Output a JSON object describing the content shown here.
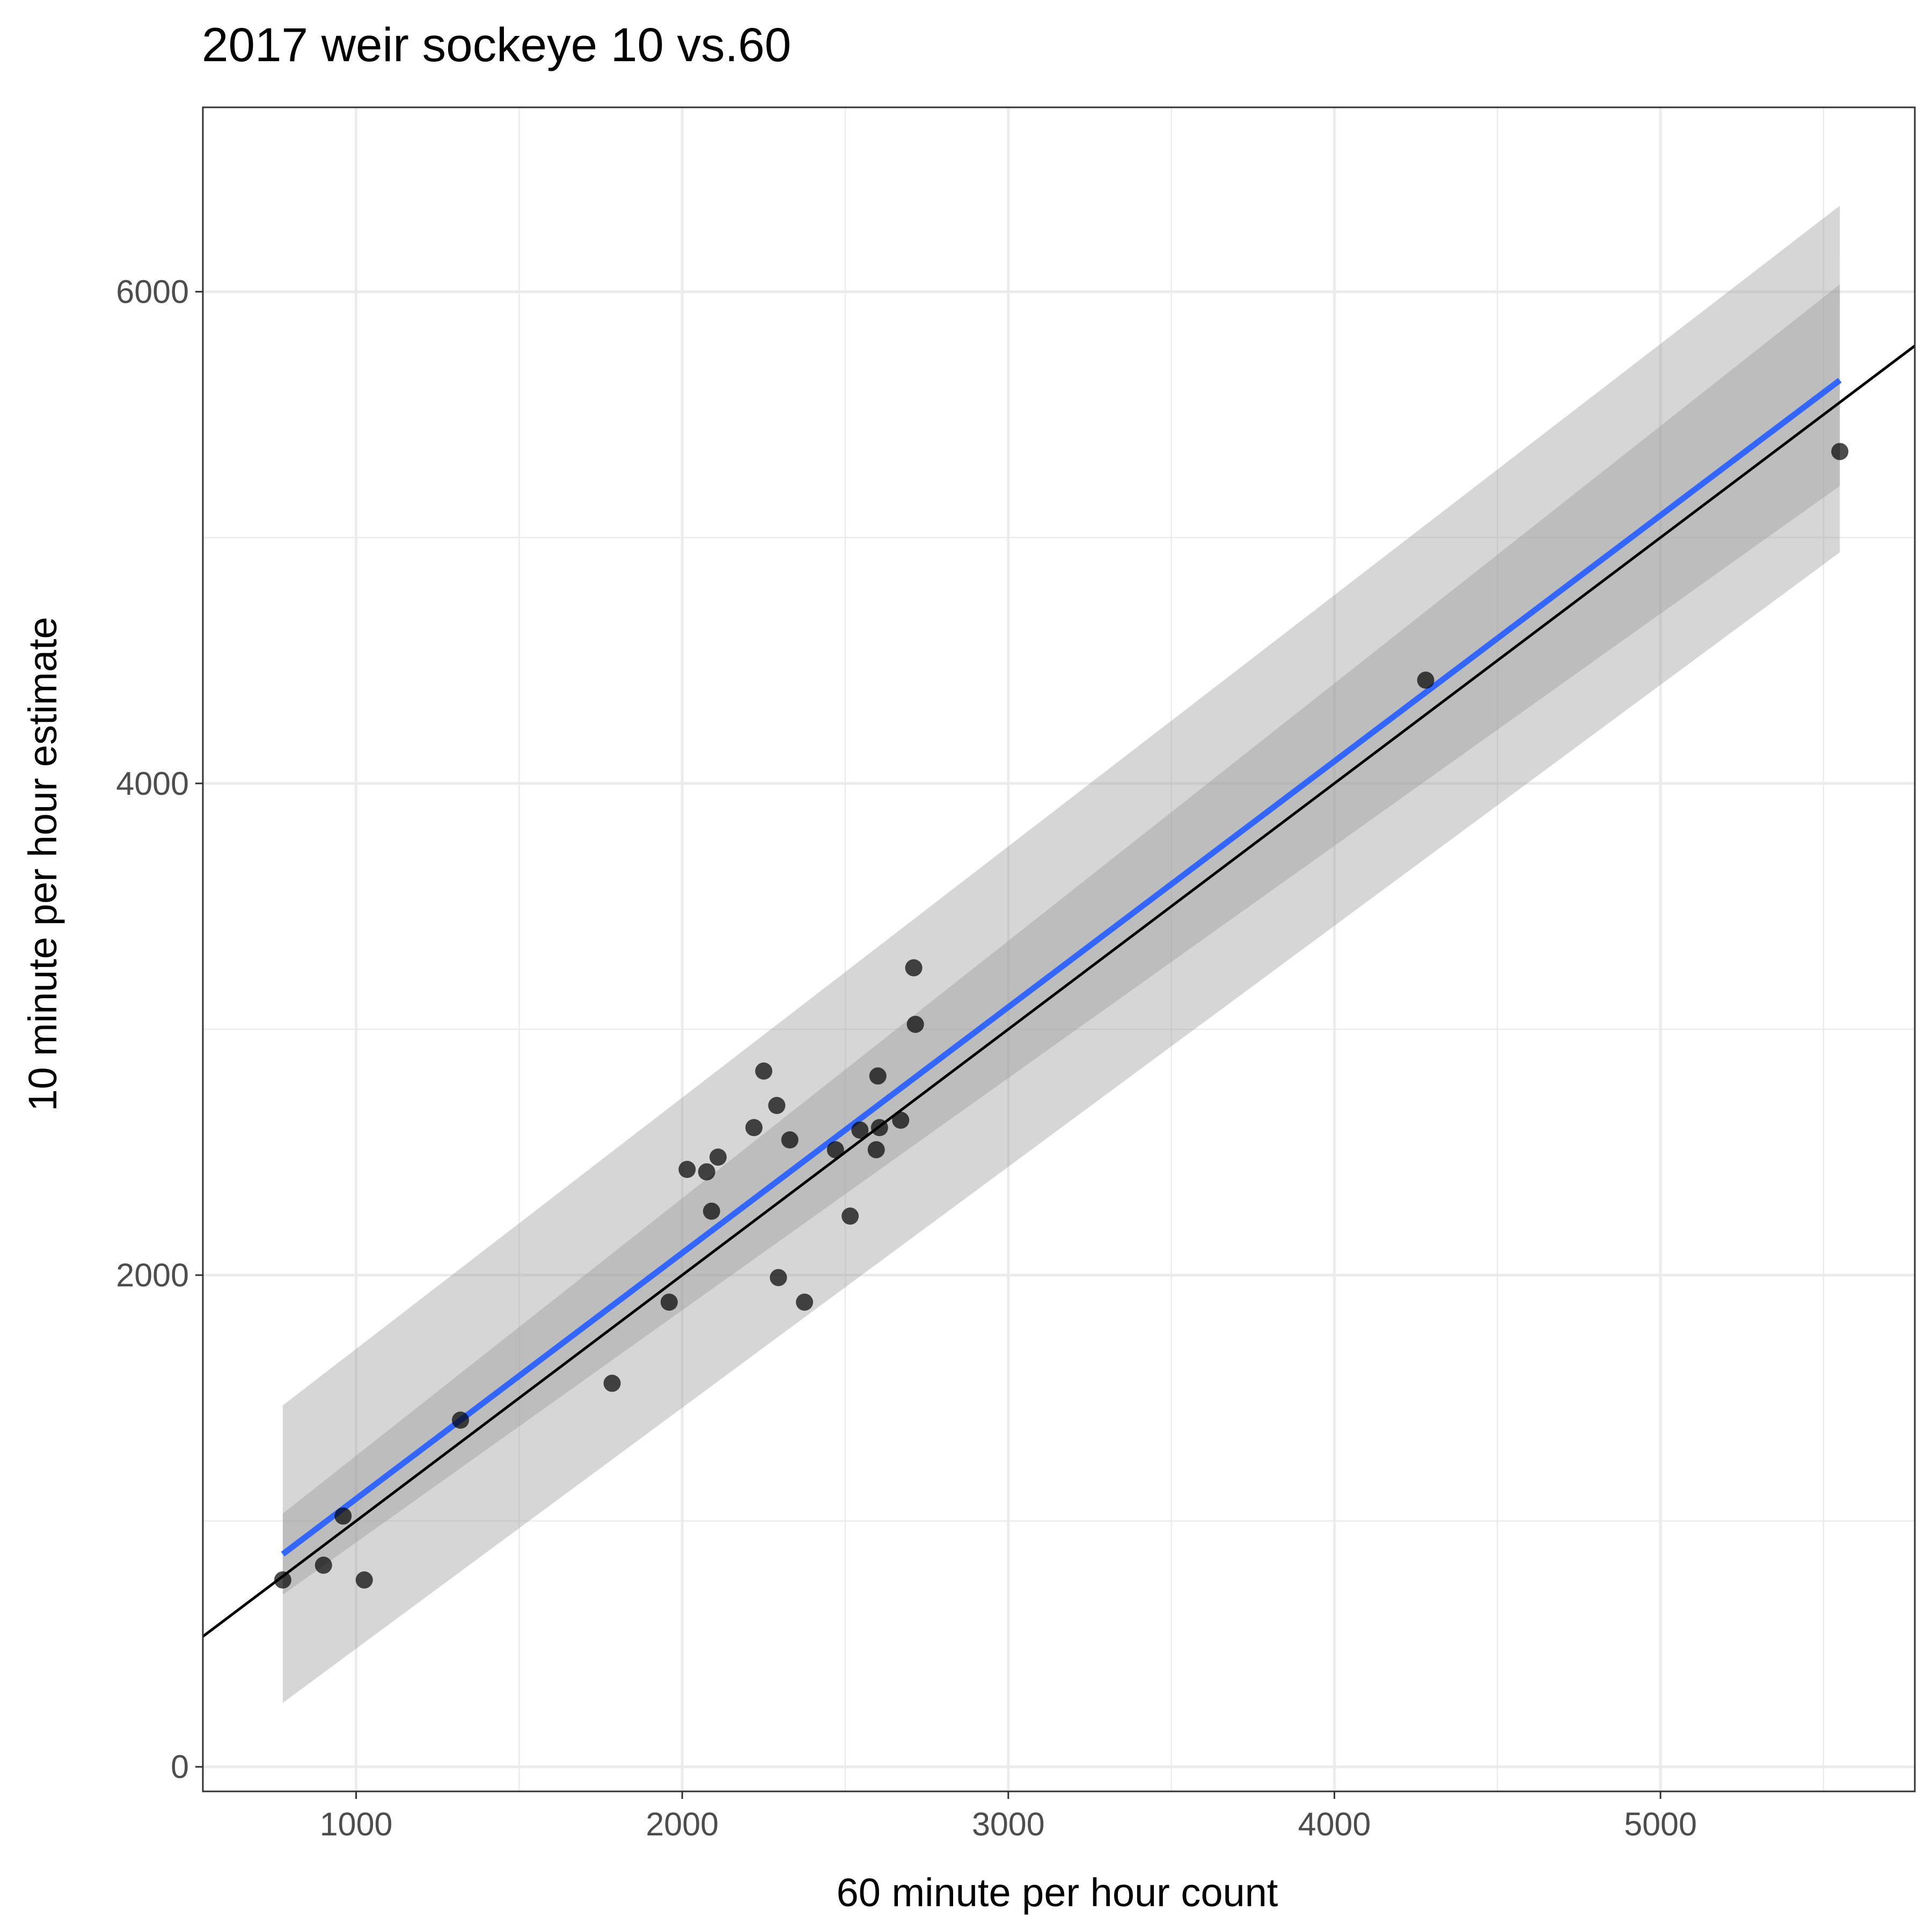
{
  "chart_data": {
    "type": "scatter",
    "title": "2017 weir sockeye 10 vs.60",
    "xlabel": "60 minute per hour count",
    "ylabel": "10 minute per hour estimate",
    "xlim": [
      530,
      5780
    ],
    "ylim": [
      -100,
      6750
    ],
    "x_ticks": [
      1000,
      2000,
      3000,
      4000,
      5000
    ],
    "x_minor_ticks": [
      1500,
      2500,
      3500,
      4500,
      5500
    ],
    "y_ticks": [
      0,
      2000,
      4000,
      6000
    ],
    "y_minor_ticks": [
      1000,
      3000,
      5000
    ],
    "x_tick_labels": [
      "1000",
      "2000",
      "3000",
      "4000",
      "5000"
    ],
    "y_tick_labels": [
      "0",
      "2000",
      "4000",
      "6000"
    ],
    "grid": true,
    "legend": "none",
    "colors": {
      "points": "#000000",
      "fit_line": "#3366ff",
      "reference_line": "#000000",
      "ribbon": "#999999",
      "grid": "#ebebeb",
      "panel_border": "#333333"
    },
    "series": [
      {
        "type": "scatter",
        "x": [
          775,
          900,
          960,
          1025,
          1320,
          1785,
          1960,
          2015,
          2075,
          2090,
          2110,
          2220,
          2250,
          2290,
          2295,
          2330,
          2375,
          2470,
          2515,
          2545,
          2595,
          2600,
          2605,
          2670,
          2710,
          2715,
          4280,
          5550
        ],
        "y": [
          760,
          820,
          1020,
          760,
          1410,
          1560,
          1890,
          2430,
          2420,
          2260,
          2480,
          2600,
          2830,
          2690,
          1990,
          2550,
          1890,
          2510,
          2240,
          2590,
          2510,
          2810,
          2600,
          2630,
          3250,
          3020,
          4420,
          5350
        ]
      },
      {
        "type": "line",
        "x": [
          775,
          5550
        ],
        "y": [
          865,
          5640
        ]
      },
      {
        "type": "line",
        "x": [
          530,
          5780
        ],
        "y": [
          530,
          5780
        ]
      },
      {
        "type": "area",
        "x": [
          775,
          5550
        ],
        "y_low": [
          700,
          5210
        ],
        "y_high": [
          1030,
          6030
        ]
      },
      {
        "type": "area",
        "x": [
          775,
          5550
        ],
        "y_low": [
          260,
          4940
        ],
        "y_high": [
          1470,
          6350
        ]
      }
    ]
  }
}
